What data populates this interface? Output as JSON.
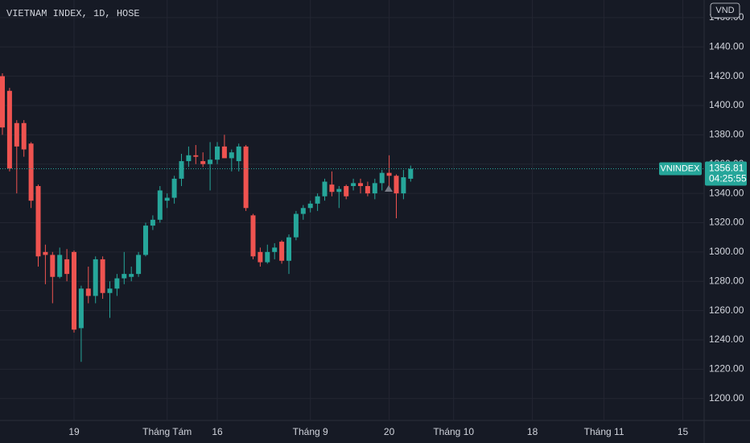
{
  "chart_data": {
    "type": "candlestick",
    "title": "VIETNAM INDEX, 1D, HOSE",
    "currency": "VND",
    "symbol": "VNINDEX",
    "countdown": "04:25:55",
    "up_color": "#26a69a",
    "down_color": "#ef5350",
    "grid": true,
    "ylim": [
      1185,
      1472
    ],
    "yticks": [
      {
        "value": 1200,
        "label": "1200.00"
      },
      {
        "value": 1220,
        "label": "1220.00"
      },
      {
        "value": 1240,
        "label": "1240.00"
      },
      {
        "value": 1260,
        "label": "1260.00"
      },
      {
        "value": 1280,
        "label": "1280.00"
      },
      {
        "value": 1300,
        "label": "1300.00"
      },
      {
        "value": 1320,
        "label": "1320.00"
      },
      {
        "value": 1340,
        "label": "1340.00"
      },
      {
        "value": 1360,
        "label": "1360.00"
      },
      {
        "value": 1380,
        "label": "1380.00"
      },
      {
        "value": 1400,
        "label": "1400.00"
      },
      {
        "value": 1420,
        "label": "1420.00"
      },
      {
        "value": 1440,
        "label": "1440.00"
      },
      {
        "value": 1460,
        "label": "1460.00"
      }
    ],
    "categories": [
      null,
      null,
      null,
      null,
      null,
      null,
      null,
      null,
      null,
      null,
      "19",
      null,
      null,
      null,
      null,
      null,
      null,
      null,
      null,
      null,
      null,
      null,
      null,
      "Tháng Tám",
      null,
      null,
      null,
      null,
      null,
      null,
      "16",
      null,
      null,
      null,
      null,
      null,
      null,
      null,
      null,
      null,
      null,
      null,
      null,
      "Tháng 9",
      null,
      null,
      null,
      null,
      null,
      null,
      null,
      null,
      null,
      null,
      "20",
      null,
      null,
      null,
      null,
      null,
      null,
      null,
      null,
      "Tháng 10",
      null,
      null,
      null,
      null,
      null,
      null,
      null,
      null,
      null,
      null,
      "18",
      null,
      null,
      null,
      null,
      null,
      null,
      null,
      null,
      null,
      "Tháng 11",
      null,
      null,
      null,
      null,
      null,
      null,
      null,
      null,
      null,
      null,
      "15"
    ],
    "open": [
      1420,
      1410,
      1388,
      1388,
      1374,
      1345,
      1300,
      1298,
      1283,
      1295,
      1300,
      1248,
      1275,
      1270,
      1295,
      1272,
      1275,
      1282,
      1283,
      1285,
      1298,
      1318,
      1322,
      1335,
      1337,
      1350,
      1362,
      1366,
      1362,
      1360,
      1363,
      1372,
      1364,
      1362,
      1372,
      1325,
      1300,
      1293,
      1300,
      1307,
      1294,
      1310,
      1326,
      1330,
      1333,
      1338,
      1346,
      1341,
      1345,
      1345,
      1347,
      1345,
      1340,
      1347,
      1354,
      1352,
      1340,
      1350,
      null,
      null,
      null,
      null,
      null,
      null,
      null,
      null,
      null,
      null,
      null,
      null,
      null,
      null,
      null,
      null,
      null,
      null,
      null,
      null,
      null,
      null,
      null,
      null,
      null,
      null,
      null,
      null,
      null,
      null,
      null,
      null,
      null,
      null,
      null,
      null,
      null,
      null
    ],
    "high": [
      1422,
      1412,
      1390,
      1390,
      1375,
      1346,
      1305,
      1300,
      1303,
      1302,
      1301,
      1277,
      1290,
      1297,
      1297,
      1280,
      1285,
      1300,
      1290,
      1300,
      1320,
      1325,
      1345,
      1340,
      1352,
      1367,
      1372,
      1373,
      1368,
      1375,
      1375,
      1380,
      1370,
      1374,
      1373,
      1326,
      1303,
      1305,
      1306,
      1308,
      1312,
      1328,
      1332,
      1335,
      1340,
      1350,
      1355,
      1345,
      1346,
      1350,
      1350,
      1348,
      1350,
      1356,
      1366,
      1353,
      1356,
      1359,
      null,
      null,
      null,
      null,
      null,
      null,
      null,
      null,
      null,
      null,
      null,
      null,
      null,
      null,
      null,
      null,
      null,
      null,
      null,
      null,
      null,
      null,
      null,
      null,
      null,
      null,
      null,
      null,
      null,
      null,
      null,
      null,
      null,
      null,
      null,
      null,
      null,
      null
    ],
    "low": [
      1380,
      1355,
      1340,
      1365,
      1330,
      1290,
      1278,
      1265,
      1282,
      1280,
      1245,
      1225,
      1265,
      1265,
      1268,
      1255,
      1270,
      1278,
      1280,
      1283,
      1297,
      1315,
      1320,
      1330,
      1333,
      1345,
      1358,
      1360,
      1358,
      1342,
      1360,
      1365,
      1355,
      1355,
      1328,
      1295,
      1290,
      1292,
      1295,
      1292,
      1285,
      1308,
      1322,
      1327,
      1328,
      1335,
      1338,
      1330,
      1336,
      1342,
      1340,
      1338,
      1336,
      1342,
      1343,
      1323,
      1336,
      1348,
      null,
      null,
      null,
      null,
      null,
      null,
      null,
      null,
      null,
      null,
      null,
      null,
      null,
      null,
      null,
      null,
      null,
      null,
      null,
      null,
      null,
      null,
      null,
      null,
      null,
      null,
      null,
      null,
      null,
      null,
      null,
      null,
      null,
      null,
      null,
      null,
      null,
      null
    ],
    "close": [
      1385,
      1357,
      1372,
      1370,
      1335,
      1297,
      1298,
      1283,
      1298,
      1285,
      1247,
      1275,
      1270,
      1295,
      1272,
      1275,
      1282,
      1285,
      1285,
      1298,
      1318,
      1322,
      1342,
      1337,
      1350,
      1362,
      1366,
      1365,
      1360,
      1363,
      1372,
      1364,
      1368,
      1372,
      1330,
      1297,
      1293,
      1300,
      1303,
      1294,
      1310,
      1326,
      1330,
      1333,
      1338,
      1348,
      1341,
      1343,
      1338,
      1347,
      1345,
      1340,
      1347,
      1354,
      1352,
      1340,
      1351,
      1356.81,
      null,
      null,
      null,
      null,
      null,
      null,
      null,
      null,
      null,
      null,
      null,
      null,
      null,
      null,
      null,
      null,
      null,
      null,
      null,
      null,
      null,
      null,
      null,
      null,
      null,
      null,
      null,
      null,
      null,
      null,
      null,
      null,
      null,
      null,
      null,
      null,
      null,
      null
    ]
  }
}
